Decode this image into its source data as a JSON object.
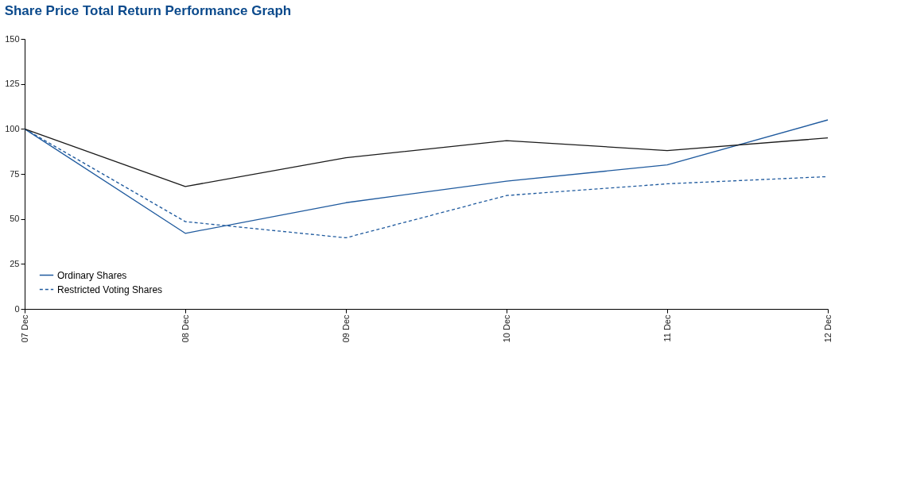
{
  "chart_data": {
    "type": "line",
    "title": "Share Price Total Return Performance Graph",
    "categories": [
      "07 Dec",
      "08 Dec",
      "09 Dec",
      "10 Dec",
      "11 Dec",
      "12 Dec"
    ],
    "series": [
      {
        "name": "Ordinary Shares",
        "color": "#1f5a9e",
        "line_style": "solid",
        "values": [
          100,
          42,
          59,
          71,
          80,
          105
        ]
      },
      {
        "name": "Restricted Voting Shares",
        "color": "#1f5a9e",
        "line_style": "dashed",
        "values": [
          100,
          48.5,
          39.5,
          63,
          69.5,
          73.5
        ]
      },
      {
        "color": "#1a1a1a",
        "line_style": "solid",
        "values": [
          100,
          68,
          84,
          93.5,
          88,
          95
        ]
      }
    ],
    "ylim": [
      0,
      150
    ],
    "yticks": [
      0,
      25,
      50,
      75,
      100,
      125,
      150
    ],
    "grid": false,
    "legend": "bottom left",
    "marker": "none"
  }
}
